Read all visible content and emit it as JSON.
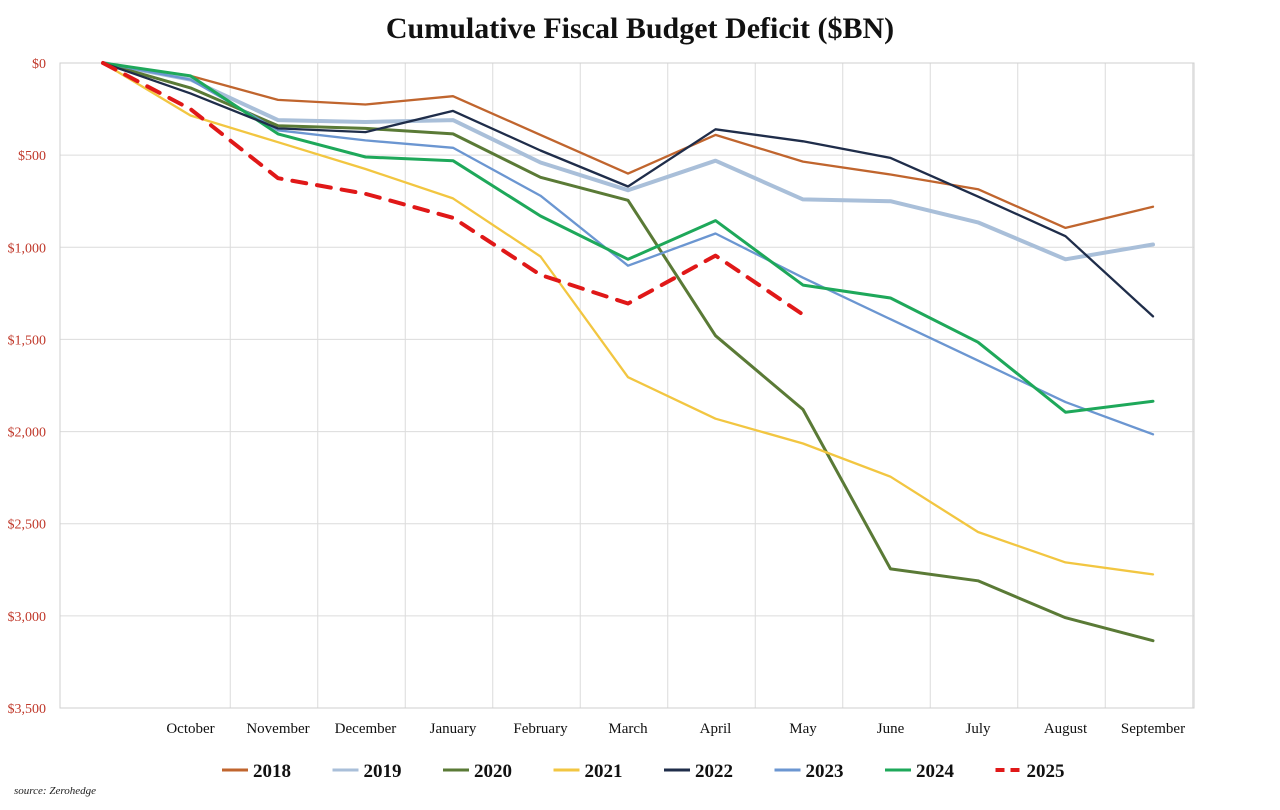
{
  "chart_data": {
    "type": "line",
    "title": "Cumulative Fiscal Budget Deficit ($BN)",
    "source": "source: Zerohedge",
    "y_tick_labels": [
      "$0",
      "$500",
      "$1,000",
      "$1,500",
      "$2,000",
      "$2,500",
      "$3,000",
      "$3,500"
    ],
    "y_tick_values": [
      0,
      500,
      1000,
      1500,
      2000,
      2500,
      3000,
      3500
    ],
    "ylim": [
      0,
      3500
    ],
    "y_inverted": true,
    "grid": true,
    "legend_position": "bottom",
    "x": [
      "",
      "October",
      "November",
      "December",
      "January",
      "February",
      "March",
      "April",
      "May",
      "June",
      "July",
      "August",
      "September"
    ],
    "series": [
      {
        "name": "2018",
        "color": "#c0652e",
        "style": "solid",
        "values": [
          0,
          70,
          200,
          225,
          180,
          390,
          600,
          390,
          535,
          605,
          685,
          895,
          780
        ]
      },
      {
        "name": "2019",
        "color": "#a9bfd9",
        "style": "solid",
        "values": [
          0,
          90,
          310,
          320,
          310,
          540,
          690,
          530,
          740,
          750,
          865,
          1065,
          985
        ]
      },
      {
        "name": "2020",
        "color": "#5a7a36",
        "style": "solid",
        "values": [
          0,
          135,
          340,
          355,
          385,
          620,
          745,
          1480,
          1880,
          2745,
          2810,
          3010,
          3135
        ]
      },
      {
        "name": "2021",
        "color": "#f2c641",
        "style": "solid",
        "values": [
          0,
          285,
          430,
          575,
          735,
          1050,
          1705,
          1930,
          2065,
          2245,
          2545,
          2710,
          2775
        ]
      },
      {
        "name": "2022",
        "color": "#1f2d4a",
        "style": "solid",
        "values": [
          0,
          165,
          355,
          375,
          260,
          475,
          670,
          360,
          425,
          515,
          725,
          940,
          1375
        ]
      },
      {
        "name": "2023",
        "color": "#6b96d1",
        "style": "solid",
        "values": [
          0,
          90,
          365,
          420,
          460,
          720,
          1100,
          925,
          1165,
          1390,
          1615,
          1840,
          2015
        ]
      },
      {
        "name": "2024",
        "color": "#1ea85a",
        "style": "solid",
        "values": [
          0,
          70,
          385,
          510,
          530,
          830,
          1065,
          855,
          1205,
          1275,
          1515,
          1895,
          1835
        ]
      },
      {
        "name": "2025",
        "color": "#e01818",
        "style": "dashed",
        "values": [
          0,
          250,
          625,
          710,
          840,
          1150,
          1305,
          1045,
          1365,
          null,
          null,
          null,
          null
        ]
      }
    ]
  }
}
